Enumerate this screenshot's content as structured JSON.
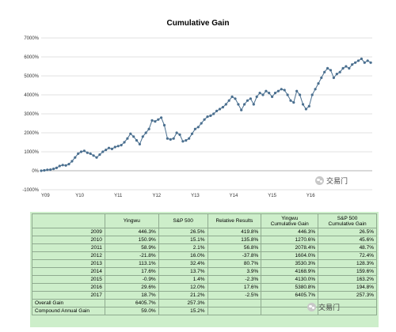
{
  "chart_data": {
    "type": "line",
    "title": "Cumulative Gain",
    "xlabel": "",
    "ylabel": "",
    "x_tick_labels": [
      "Y09",
      "Y10",
      "Y11",
      "Y12",
      "Y13",
      "Y14",
      "Y15",
      "Y16"
    ],
    "y_tick_labels": [
      "7000%",
      "6000%",
      "5000%",
      "4000%",
      "3000%",
      "2000%",
      "1000%",
      "0%",
      "-1000%"
    ],
    "ylim": [
      -1000,
      7000
    ],
    "xlim": [
      2009,
      2017.6
    ],
    "grid": "horizontal",
    "legend": "none",
    "series_color": "#4a6f8f",
    "series": [
      {
        "x": [
          2009.0,
          2009.08,
          2009.16,
          2009.24,
          2009.32,
          2009.4,
          2009.48,
          2009.56,
          2009.64,
          2009.72,
          2009.8,
          2009.88,
          2009.96,
          2010.04,
          2010.12,
          2010.2,
          2010.28,
          2010.36,
          2010.44,
          2010.52,
          2010.6,
          2010.68,
          2010.76,
          2010.84,
          2010.92,
          2011.0,
          2011.08,
          2011.16,
          2011.24,
          2011.32,
          2011.4,
          2011.48,
          2011.56,
          2011.64,
          2011.72,
          2011.8,
          2011.88,
          2011.96,
          2012.04,
          2012.12,
          2012.2,
          2012.28,
          2012.36,
          2012.44,
          2012.52,
          2012.6,
          2012.68,
          2012.76,
          2012.84,
          2012.92,
          2013.0,
          2013.08,
          2013.16,
          2013.24,
          2013.32,
          2013.4,
          2013.48,
          2013.56,
          2013.64,
          2013.72,
          2013.8,
          2013.88,
          2013.96,
          2014.04,
          2014.12,
          2014.2,
          2014.28,
          2014.36,
          2014.44,
          2014.52,
          2014.6,
          2014.68,
          2014.76,
          2014.84,
          2014.92,
          2015.0,
          2015.08,
          2015.16,
          2015.24,
          2015.32,
          2015.4,
          2015.48,
          2015.56,
          2015.64,
          2015.72,
          2015.8,
          2015.88,
          2015.96,
          2016.04,
          2016.12,
          2016.2,
          2016.28,
          2016.36,
          2016.44,
          2016.52,
          2016.6,
          2016.68,
          2016.76,
          2016.84,
          2016.92,
          2017.0,
          2017.08,
          2017.16,
          2017.24,
          2017.32,
          2017.4,
          2017.48,
          2017.56
        ],
        "y": [
          0,
          20,
          50,
          60,
          100,
          150,
          250,
          300,
          280,
          350,
          500,
          700,
          900,
          1000,
          1050,
          950,
          900,
          800,
          700,
          850,
          1000,
          1100,
          1200,
          1150,
          1250,
          1300,
          1350,
          1500,
          1700,
          1950,
          1800,
          1600,
          1400,
          1800,
          2000,
          2200,
          2650,
          2600,
          2700,
          2800,
          2400,
          1700,
          1650,
          1700,
          2000,
          1900,
          1550,
          1600,
          1700,
          1950,
          2200,
          2300,
          2500,
          2700,
          2850,
          2900,
          3000,
          3150,
          3250,
          3350,
          3500,
          3700,
          3900,
          3800,
          3500,
          3200,
          3500,
          3700,
          3800,
          3500,
          3900,
          4100,
          4000,
          4200,
          4100,
          3900,
          4100,
          4200,
          4300,
          4250,
          4000,
          3700,
          3600,
          4200,
          4000,
          3500,
          3250,
          3400,
          4000,
          4300,
          4600,
          4900,
          5200,
          5400,
          5300,
          4900,
          5100,
          5200,
          5400,
          5500,
          5400,
          5600,
          5700,
          5800,
          5900,
          5700,
          5800,
          5700
        ]
      }
    ]
  },
  "table": {
    "headers": [
      "Yingwu",
      "S&P 500",
      "Relative Results",
      "Yingwu\nCumulative Gain",
      "S&P 500\nCumulative Gain"
    ],
    "rows": [
      {
        "year": "2009",
        "yingwu": "446.3%",
        "sp500": "26.5%",
        "relative": "419.8%",
        "yingwu_cum": "446.3%",
        "sp500_cum": "26.5%"
      },
      {
        "year": "2010",
        "yingwu": "150.9%",
        "sp500": "15.1%",
        "relative": "135.8%",
        "yingwu_cum": "1270.6%",
        "sp500_cum": "45.6%"
      },
      {
        "year": "2011",
        "yingwu": "58.9%",
        "sp500": "2.1%",
        "relative": "56.8%",
        "yingwu_cum": "2078.4%",
        "sp500_cum": "48.7%"
      },
      {
        "year": "2012",
        "yingwu": "-21.8%",
        "sp500": "16.0%",
        "relative": "-37.8%",
        "yingwu_cum": "1604.0%",
        "sp500_cum": "72.4%"
      },
      {
        "year": "2013",
        "yingwu": "113.1%",
        "sp500": "32.4%",
        "relative": "80.7%",
        "yingwu_cum": "3530.3%",
        "sp500_cum": "128.3%"
      },
      {
        "year": "2014",
        "yingwu": "17.6%",
        "sp500": "13.7%",
        "relative": "3.9%",
        "yingwu_cum": "4168.9%",
        "sp500_cum": "159.6%"
      },
      {
        "year": "2015",
        "yingwu": "-0.9%",
        "sp500": "1.4%",
        "relative": "-2.3%",
        "yingwu_cum": "4130.0%",
        "sp500_cum": "163.2%"
      },
      {
        "year": "2016",
        "yingwu": "29.6%",
        "sp500": "12.0%",
        "relative": "17.6%",
        "yingwu_cum": "5380.8%",
        "sp500_cum": "194.8%"
      },
      {
        "year": "2017",
        "yingwu": "18.7%",
        "sp500": "21.2%",
        "relative": "-2.5%",
        "yingwu_cum": "6405.7%",
        "sp500_cum": "257.3%"
      }
    ],
    "overall": {
      "label": "Overall Gain",
      "yingwu": "6405.7%",
      "sp500": "257.3%"
    },
    "compound": {
      "label": "Compound Annual Gain",
      "yingwu": "59.0%",
      "sp500": "15.2%"
    }
  },
  "watermark": {
    "text": "交易门"
  }
}
